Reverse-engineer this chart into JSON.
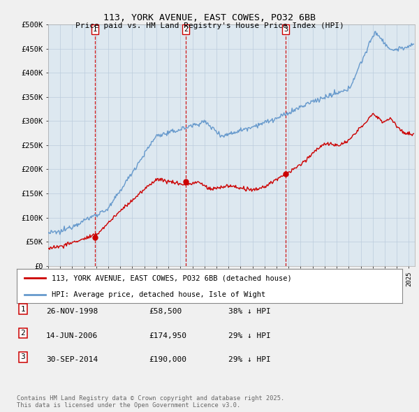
{
  "title1": "113, YORK AVENUE, EAST COWES, PO32 6BB",
  "title2": "Price paid vs. HM Land Registry's House Price Index (HPI)",
  "ylabel_ticks": [
    "£0",
    "£50K",
    "£100K",
    "£150K",
    "£200K",
    "£250K",
    "£300K",
    "£350K",
    "£400K",
    "£450K",
    "£500K"
  ],
  "ylim": [
    0,
    500000
  ],
  "xlim_start": 1995.0,
  "xlim_end": 2025.5,
  "sale_dates": [
    1998.9,
    2006.45,
    2014.75
  ],
  "sale_prices": [
    58500,
    174950,
    190000
  ],
  "sale_labels": [
    "1",
    "2",
    "3"
  ],
  "vline_color": "#cc0000",
  "sale_marker_color": "#cc0000",
  "hpi_line_color": "#6699cc",
  "price_line_color": "#cc0000",
  "plot_bg_color": "#dde8f0",
  "legend_label_price": "113, YORK AVENUE, EAST COWES, PO32 6BB (detached house)",
  "legend_label_hpi": "HPI: Average price, detached house, Isle of Wight",
  "table_rows": [
    [
      "1",
      "26-NOV-1998",
      "£58,500",
      "38% ↓ HPI"
    ],
    [
      "2",
      "14-JUN-2006",
      "£174,950",
      "29% ↓ HPI"
    ],
    [
      "3",
      "30-SEP-2014",
      "£190,000",
      "29% ↓ HPI"
    ]
  ],
  "footnote": "Contains HM Land Registry data © Crown copyright and database right 2025.\nThis data is licensed under the Open Government Licence v3.0.",
  "background_color": "#f0f0f0",
  "grid_color": "#bbccdd"
}
